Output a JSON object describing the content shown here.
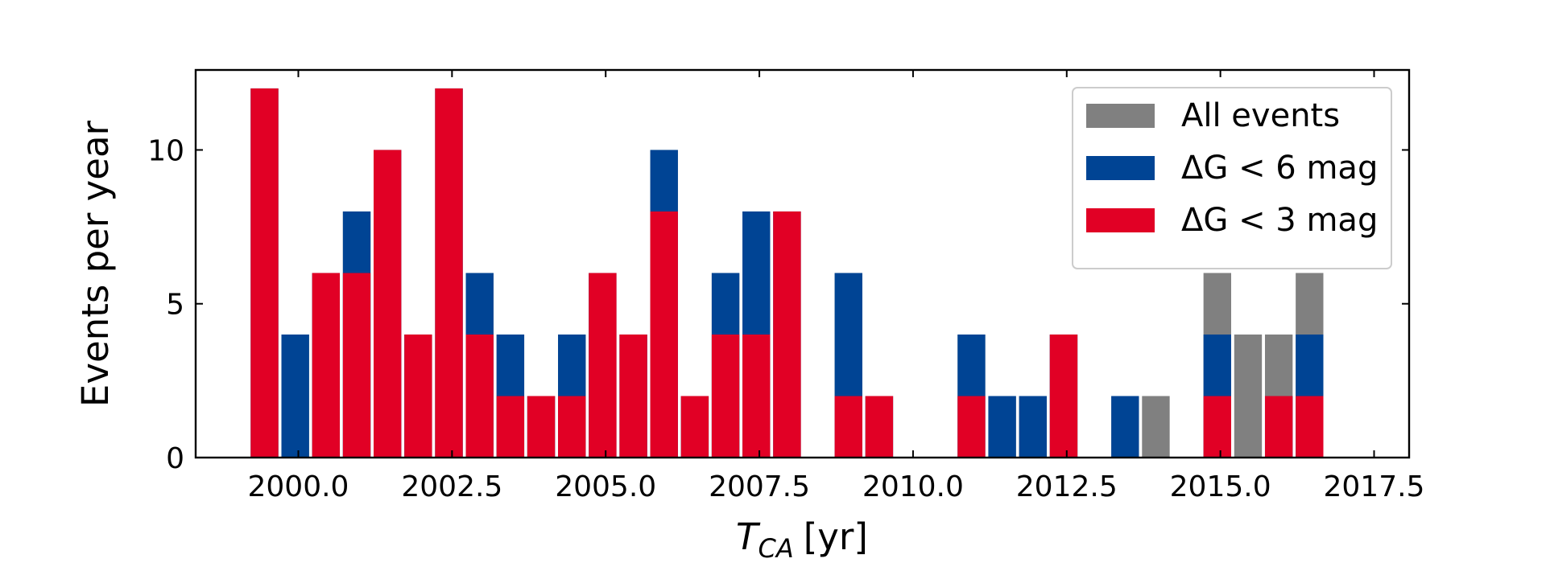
{
  "chart_data": {
    "type": "histogram",
    "x_label": {
      "symbol": "T",
      "subscript": "CA",
      "unit": "[yr]"
    },
    "y_label": "Events per year",
    "bins": [
      1999.2,
      1999.7,
      2000.2,
      2000.7,
      2001.2,
      2001.7,
      2002.2,
      2002.7,
      2003.2,
      2003.7,
      2004.2,
      2004.7,
      2005.2,
      2005.7,
      2006.2,
      2006.7,
      2007.2,
      2007.7,
      2008.2,
      2008.7,
      2009.2,
      2009.7,
      2010.2,
      2010.7,
      2011.2,
      2011.7,
      2012.2,
      2012.7,
      2013.2,
      2013.7,
      2014.2,
      2014.7,
      2015.2,
      2015.7,
      2016.2,
      2016.7
    ],
    "series": [
      {
        "name": "All events",
        "color": "#808080",
        "values": [
          12,
          4,
          6,
          8,
          10,
          4,
          12,
          6,
          4,
          2,
          4,
          6,
          4,
          10,
          2,
          6,
          8,
          8,
          0,
          6,
          2,
          0,
          0,
          4,
          2,
          2,
          4,
          0,
          2,
          2,
          0,
          6,
          4,
          4,
          6
        ]
      },
      {
        "name": "ΔG < 6 mag",
        "color": "#004494",
        "values": [
          12,
          4,
          6,
          8,
          10,
          4,
          12,
          6,
          4,
          2,
          4,
          6,
          4,
          10,
          2,
          6,
          8,
          8,
          0,
          6,
          2,
          0,
          0,
          4,
          2,
          2,
          4,
          0,
          2,
          0,
          0,
          4,
          0,
          2,
          4
        ]
      },
      {
        "name": "ΔG < 3 mag",
        "color": "#e10025",
        "values": [
          12,
          0,
          6,
          6,
          10,
          4,
          12,
          4,
          2,
          2,
          2,
          6,
          4,
          8,
          2,
          4,
          4,
          8,
          0,
          2,
          2,
          0,
          0,
          2,
          0,
          0,
          4,
          0,
          0,
          0,
          0,
          2,
          0,
          2,
          2
        ]
      }
    ],
    "xlim": [
      1998.33,
      2018.07
    ],
    "ylim": [
      0,
      12.6
    ],
    "xticks": [
      {
        "value": 2000,
        "label": "2000.0"
      },
      2002.5,
      {
        "value": 2005,
        "label": "2005.0"
      },
      2007.5,
      {
        "value": 2010,
        "label": "2010.0"
      },
      2012.5,
      {
        "value": 2015,
        "label": "2015.0"
      },
      2017.5
    ],
    "yticks": [
      0,
      5,
      10
    ],
    "legend": "upper right"
  }
}
